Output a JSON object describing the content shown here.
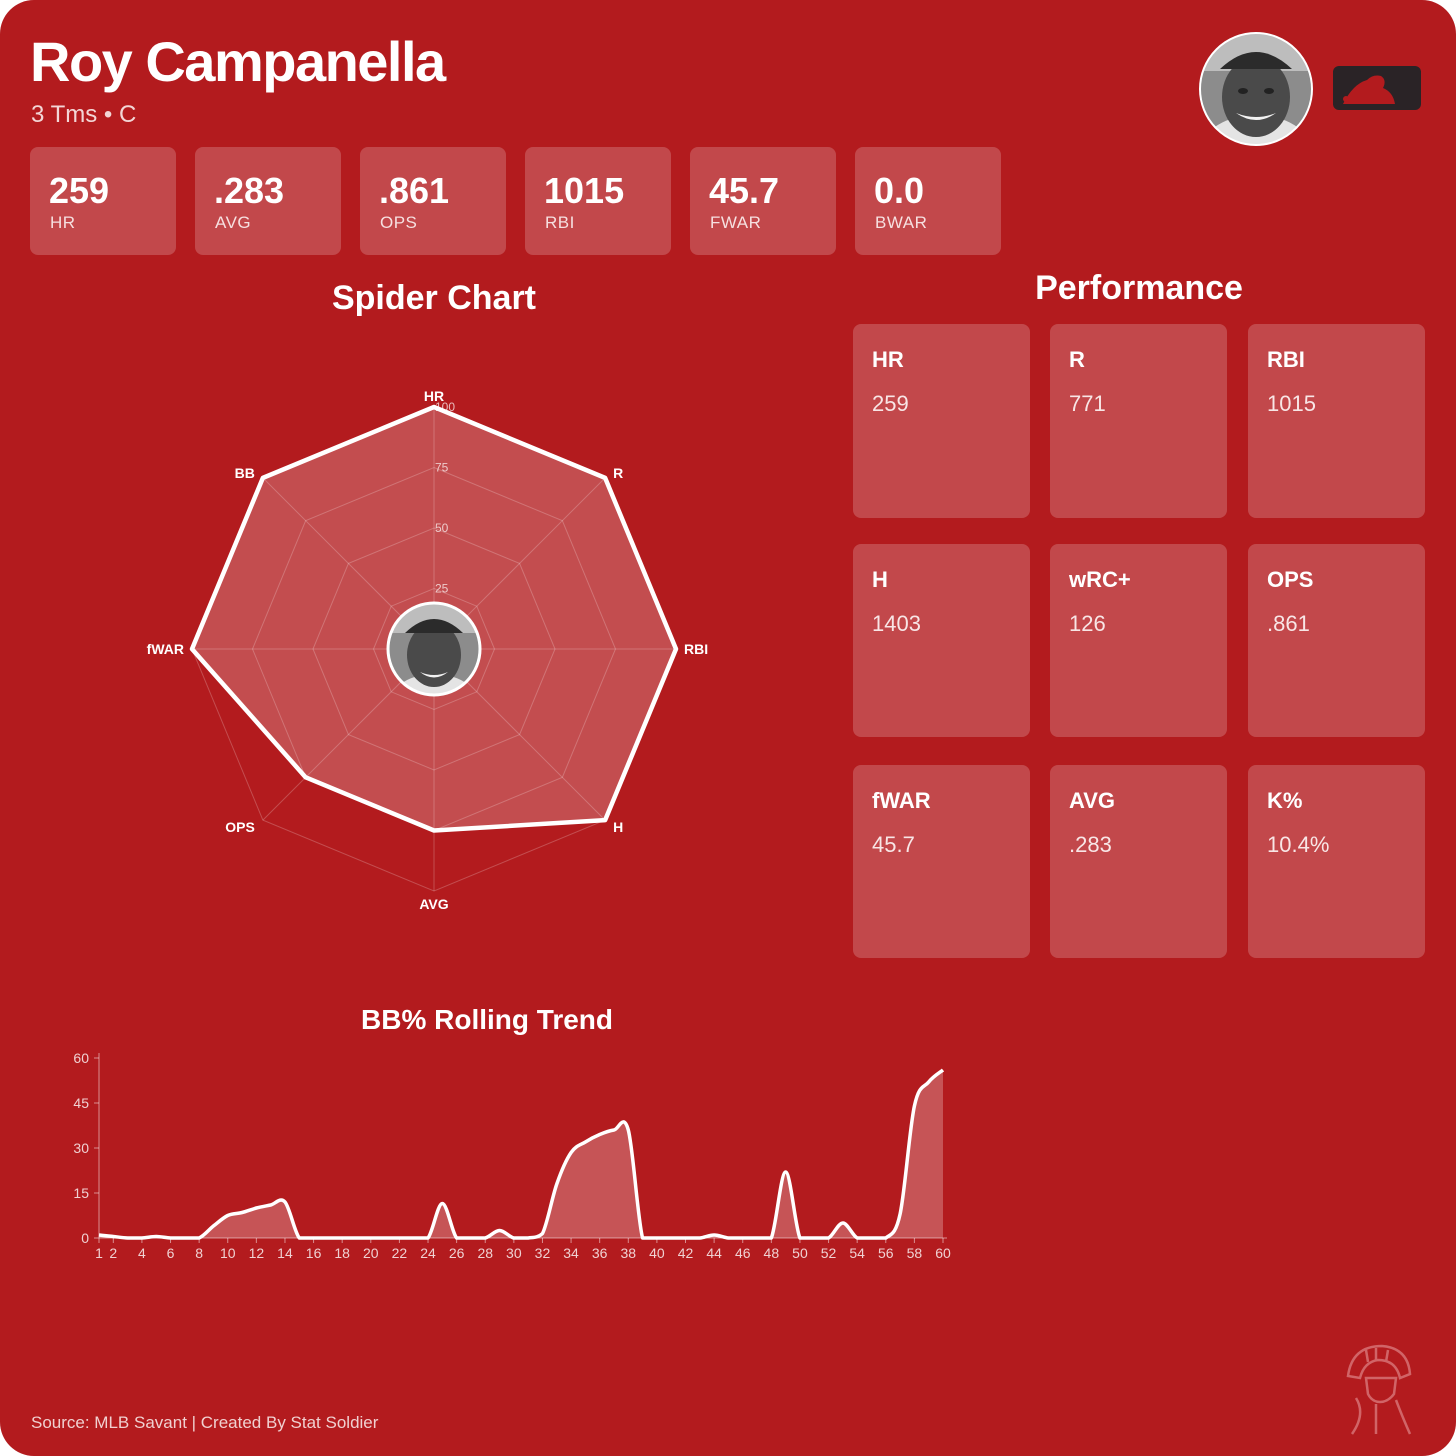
{
  "player": {
    "name": "Roy Campanella",
    "subtitle": "3 Tms • C"
  },
  "icons": {
    "headshot": "player-headshot",
    "league": "mlb-logo",
    "watermark": "stat-soldier-helmet-logo"
  },
  "summary_stats": [
    {
      "value": "259",
      "label": "HR"
    },
    {
      "value": ".283",
      "label": "AVG"
    },
    {
      "value": ".861",
      "label": "OPS"
    },
    {
      "value": "1015",
      "label": "RBI"
    },
    {
      "value": "45.7",
      "label": "FWAR"
    },
    {
      "value": "0.0",
      "label": "BWAR"
    }
  ],
  "performance": {
    "title": "Performance",
    "cards": [
      {
        "label": "HR",
        "value": "259"
      },
      {
        "label": "R",
        "value": "771"
      },
      {
        "label": "RBI",
        "value": "1015"
      },
      {
        "label": "H",
        "value": "1403"
      },
      {
        "label": "wRC+",
        "value": "126"
      },
      {
        "label": "OPS",
        "value": ".861"
      },
      {
        "label": "fWAR",
        "value": "45.7"
      },
      {
        "label": "AVG",
        "value": ".283"
      },
      {
        "label": "K%",
        "value": "10.4%"
      }
    ]
  },
  "footer": {
    "source": "Source: MLB Savant | Created By Stat Soldier"
  },
  "colors": {
    "background": "#b31b1e",
    "tile": "rgba(255,255,255,0.2)",
    "line": "#ffffff"
  },
  "chart_data": [
    {
      "type": "radar",
      "title": "Spider Chart",
      "axes": [
        "HR",
        "R",
        "RBI",
        "H",
        "AVG",
        "OPS",
        "fWAR",
        "BB"
      ],
      "values": [
        100,
        100,
        100,
        100,
        75,
        75,
        100,
        100
      ],
      "range": [
        0,
        100
      ],
      "ticks": [
        25,
        50,
        75,
        100
      ]
    },
    {
      "type": "area",
      "title": "BB% Rolling Trend",
      "x": [
        1,
        2,
        3,
        4,
        5,
        6,
        7,
        8,
        9,
        10,
        11,
        12,
        13,
        14,
        15,
        16,
        17,
        18,
        19,
        20,
        21,
        22,
        23,
        24,
        25,
        26,
        27,
        28,
        29,
        30,
        31,
        32,
        33,
        34,
        35,
        36,
        37,
        38,
        39,
        40,
        41,
        42,
        43,
        44,
        45,
        46,
        47,
        48,
        49,
        50,
        51,
        52,
        53,
        54,
        55,
        56,
        57,
        58,
        59,
        60
      ],
      "y": [
        1,
        0.5,
        0,
        0,
        0.5,
        0,
        0,
        0,
        4,
        7.5,
        8.5,
        10,
        11,
        12,
        0,
        0,
        0,
        0,
        0,
        0,
        0,
        0,
        0,
        0,
        11.5,
        0,
        0,
        0,
        2.5,
        0,
        0,
        1.5,
        18,
        28.5,
        32,
        34.5,
        36,
        36,
        0,
        0,
        0,
        0,
        0,
        1,
        0,
        0,
        0,
        0,
        22,
        0,
        0,
        0,
        5,
        0,
        0,
        0,
        8,
        44,
        52,
        56
      ],
      "ylim": [
        0,
        60
      ],
      "yticks": [
        0,
        15,
        30,
        45,
        60
      ],
      "xticks": [
        1,
        2,
        4,
        6,
        8,
        10,
        12,
        14,
        16,
        18,
        20,
        22,
        24,
        26,
        28,
        30,
        32,
        34,
        36,
        38,
        40,
        42,
        44,
        46,
        48,
        50,
        52,
        54,
        56,
        58,
        60
      ],
      "grid": false,
      "legend": "none"
    }
  ]
}
